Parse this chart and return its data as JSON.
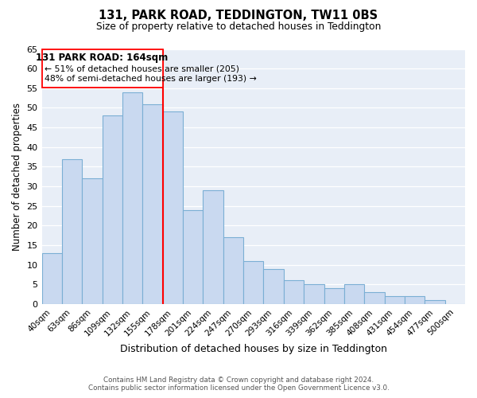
{
  "title1": "131, PARK ROAD, TEDDINGTON, TW11 0BS",
  "title2": "Size of property relative to detached houses in Teddington",
  "xlabel": "Distribution of detached houses by size in Teddington",
  "ylabel": "Number of detached properties",
  "categories": [
    "40sqm",
    "63sqm",
    "86sqm",
    "109sqm",
    "132sqm",
    "155sqm",
    "178sqm",
    "201sqm",
    "224sqm",
    "247sqm",
    "270sqm",
    "293sqm",
    "316sqm",
    "339sqm",
    "362sqm",
    "385sqm",
    "408sqm",
    "431sqm",
    "454sqm",
    "477sqm",
    "500sqm"
  ],
  "values": [
    13,
    37,
    32,
    48,
    54,
    51,
    49,
    24,
    29,
    17,
    11,
    9,
    6,
    5,
    4,
    5,
    3,
    2,
    2,
    1,
    0
  ],
  "bar_color": "#c9d9f0",
  "bar_edge_color": "#7bafd4",
  "redline_index": 6,
  "annotation_title": "131 PARK ROAD: 164sqm",
  "annotation_line1": "← 51% of detached houses are smaller (205)",
  "annotation_line2": "48% of semi-detached houses are larger (193) →",
  "ylim": [
    0,
    65
  ],
  "yticks": [
    0,
    5,
    10,
    15,
    20,
    25,
    30,
    35,
    40,
    45,
    50,
    55,
    60,
    65
  ],
  "footer1": "Contains HM Land Registry data © Crown copyright and database right 2024.",
  "footer2": "Contains public sector information licensed under the Open Government Licence v3.0.",
  "background_color": "#ffffff",
  "axes_bg_color": "#e8eef7"
}
